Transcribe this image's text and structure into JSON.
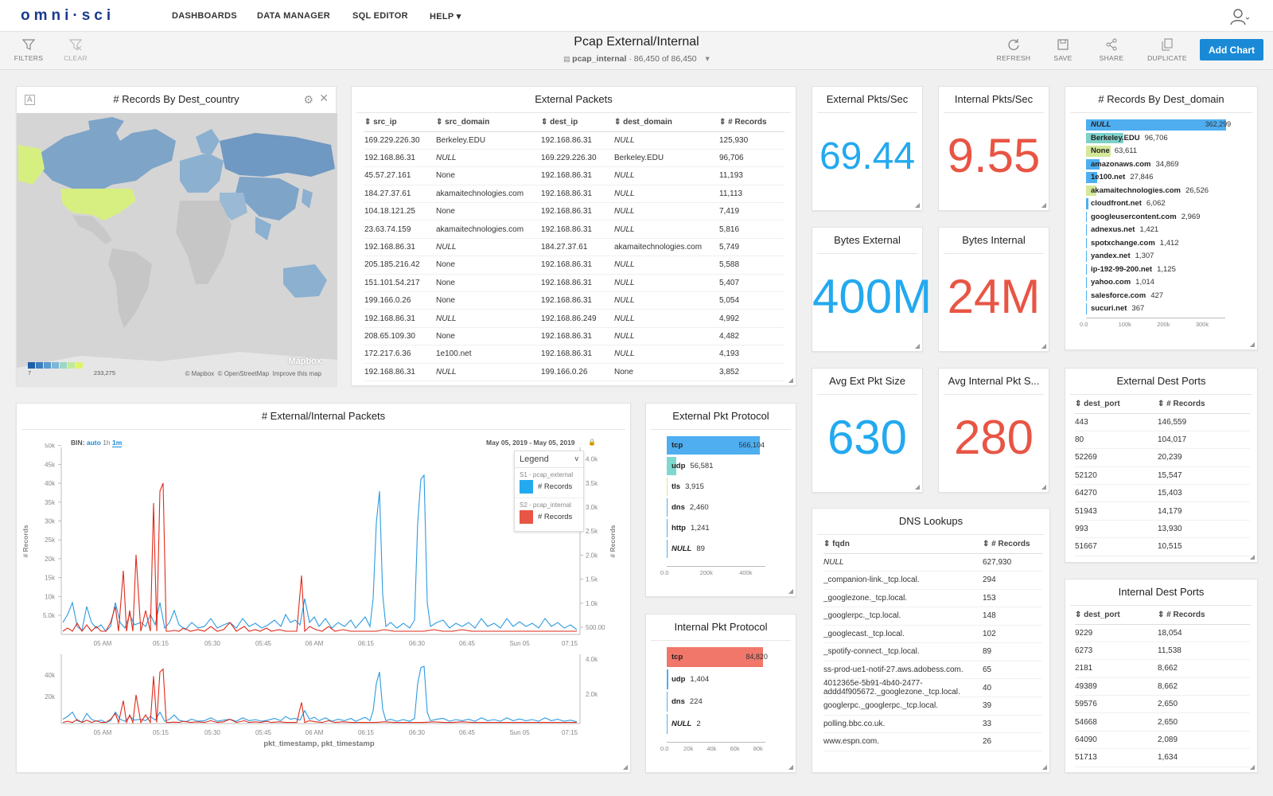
{
  "app": {
    "logo": "omni·sci",
    "nav": [
      "DASHBOARDS",
      "DATA MANAGER",
      "SQL EDITOR",
      "HELP ▾"
    ],
    "user_icon": "user-icon"
  },
  "toolbar": {
    "filters": "FILTERS",
    "clear": "CLEAR",
    "refresh": "REFRESH",
    "save": "SAVE",
    "share": "SHARE",
    "duplicate": "DUPLICATE",
    "add_chart": "Add Chart",
    "title": "Pcap External/Internal",
    "table": "pcap_internal",
    "count": "86,450 of 86,450"
  },
  "map": {
    "title": "# Records By Dest_country",
    "legend_min": "7",
    "legend_max": "233,275",
    "mapbox": "Mapbox",
    "attribution1": "© Mapbox",
    "attribution2": "© OpenStreetMap",
    "attribution3": "Improve this map",
    "colors": [
      "#1d5fa8",
      "#3a7fc0",
      "#5b9bd0",
      "#7bb7d8",
      "#9ed6c8",
      "#c2e89a",
      "#e0f26e"
    ]
  },
  "ext_packets": {
    "title": "External Packets",
    "headers": [
      "src_ip",
      "src_domain",
      "dest_ip",
      "dest_domain",
      "# Records"
    ],
    "rows": [
      [
        "169.229.226.30",
        "Berkeley.EDU",
        "192.168.86.31",
        "NULL",
        "125,930"
      ],
      [
        "192.168.86.31",
        "NULL",
        "169.229.226.30",
        "Berkeley.EDU",
        "96,706"
      ],
      [
        "45.57.27.161",
        "None",
        "192.168.86.31",
        "NULL",
        "11,193"
      ],
      [
        "184.27.37.61",
        "akamaitechnologies.com",
        "192.168.86.31",
        "NULL",
        "11,113"
      ],
      [
        "104.18.121.25",
        "None",
        "192.168.86.31",
        "NULL",
        "7,419"
      ],
      [
        "23.63.74.159",
        "akamaitechnologies.com",
        "192.168.86.31",
        "NULL",
        "5,816"
      ],
      [
        "192.168.86.31",
        "NULL",
        "184.27.37.61",
        "akamaitechnologies.com",
        "5,749"
      ],
      [
        "205.185.216.42",
        "None",
        "192.168.86.31",
        "NULL",
        "5,588"
      ],
      [
        "151.101.54.217",
        "None",
        "192.168.86.31",
        "NULL",
        "5,407"
      ],
      [
        "199.166.0.26",
        "None",
        "192.168.86.31",
        "NULL",
        "5,054"
      ],
      [
        "192.168.86.31",
        "NULL",
        "192.168.86.249",
        "NULL",
        "4,992"
      ],
      [
        "208.65.109.30",
        "None",
        "192.168.86.31",
        "NULL",
        "4,482"
      ],
      [
        "172.217.6.36",
        "1e100.net",
        "192.168.86.31",
        "NULL",
        "4,193"
      ],
      [
        "192.168.86.31",
        "NULL",
        "199.166.0.26",
        "None",
        "3,852"
      ]
    ]
  },
  "kpis": [
    {
      "title": "External Pkts/Sec",
      "value": "69.44",
      "color": "#23a9ef"
    },
    {
      "title": "Internal Pkts/Sec",
      "value": "9.55",
      "color": "#e85544"
    },
    {
      "title": "Bytes External",
      "value": "400M",
      "color": "#23a9ef"
    },
    {
      "title": "Bytes Internal",
      "value": "24M",
      "color": "#e85544"
    },
    {
      "title": "Avg Ext Pkt Size",
      "value": "630",
      "color": "#23a9ef"
    },
    {
      "title": "Avg Internal Pkt S...",
      "value": "280",
      "color": "#e85544"
    }
  ],
  "dest_domain": {
    "title": "# Records By Dest_domain",
    "ticks": [
      "0.0",
      "100k",
      "200k",
      "300k"
    ],
    "max": 360000,
    "items": [
      {
        "label": "NULL",
        "value": 362299,
        "display": "362,299",
        "color": "#4eaef0"
      },
      {
        "label": "Berkeley.EDU",
        "value": 96706,
        "display": "96,706",
        "color": "#7fd0c8"
      },
      {
        "label": "None",
        "value": 63611,
        "display": "63,611",
        "color": "#d4e89a"
      },
      {
        "label": "amazonaws.com",
        "value": 34869,
        "display": "34,869",
        "color": "#4eaef0"
      },
      {
        "label": "1e100.net",
        "value": 27846,
        "display": "27,846",
        "color": "#4eaef0"
      },
      {
        "label": "akamaitechnologies.com",
        "value": 26526,
        "display": "26,526",
        "color": "#d4e89a"
      },
      {
        "label": "cloudfront.net",
        "value": 6062,
        "display": "6,062",
        "color": "#4eaef0"
      },
      {
        "label": "googleusercontent.com",
        "value": 2969,
        "display": "2,969",
        "color": "#4eaef0"
      },
      {
        "label": "adnexus.net",
        "value": 1421,
        "display": "1,421",
        "color": "#4eaef0"
      },
      {
        "label": "spotxchange.com",
        "value": 1412,
        "display": "1,412",
        "color": "#4eaef0"
      },
      {
        "label": "yandex.net",
        "value": 1307,
        "display": "1,307",
        "color": "#4eaef0"
      },
      {
        "label": "ip-192-99-200.net",
        "value": 1125,
        "display": "1,125",
        "color": "#4eaef0"
      },
      {
        "label": "yahoo.com",
        "value": 1014,
        "display": "1,014",
        "color": "#4eaef0"
      },
      {
        "label": "salesforce.com",
        "value": 427,
        "display": "427",
        "color": "#4eaef0"
      },
      {
        "label": "sucuri.net",
        "value": 367,
        "display": "367",
        "color": "#4eaef0"
      }
    ]
  },
  "ext_ports": {
    "title": "External Dest Ports",
    "headers": [
      "dest_port",
      "# Records"
    ],
    "rows": [
      [
        "443",
        "146,559"
      ],
      [
        "80",
        "104,017"
      ],
      [
        "52269",
        "20,239"
      ],
      [
        "52120",
        "15,547"
      ],
      [
        "64270",
        "15,403"
      ],
      [
        "51943",
        "14,179"
      ],
      [
        "993",
        "13,930"
      ],
      [
        "51667",
        "10,515"
      ]
    ]
  },
  "int_ports": {
    "title": "Internal Dest Ports",
    "headers": [
      "dest_port",
      "# Records"
    ],
    "rows": [
      [
        "9229",
        "18,054"
      ],
      [
        "6273",
        "11,538"
      ],
      [
        "2181",
        "8,662"
      ],
      [
        "49389",
        "8,662"
      ],
      [
        "59576",
        "2,650"
      ],
      [
        "54668",
        "2,650"
      ],
      [
        "64090",
        "2,089"
      ],
      [
        "51713",
        "1,634"
      ]
    ]
  },
  "dns": {
    "title": "DNS Lookups",
    "headers": [
      "fqdn",
      "# Records"
    ],
    "rows": [
      [
        "NULL",
        "627,930"
      ],
      [
        "_companion-link._tcp.local.",
        "294"
      ],
      [
        "_googlezone._tcp.local.",
        "153"
      ],
      [
        "_googlerpc._tcp.local.",
        "148"
      ],
      [
        "_googlecast._tcp.local.",
        "102"
      ],
      [
        "_spotify-connect._tcp.local.",
        "89"
      ],
      [
        "ss-prod-ue1-notif-27.aws.adobess.com.",
        "65"
      ],
      [
        "4012365e-5b91-4b40-2477-addd4f905672._googlezone._tcp.local.",
        "40"
      ],
      [
        "googlerpc._googlerpc._tcp.local.",
        "39"
      ],
      [
        "polling.bbc.co.uk.",
        "33"
      ],
      [
        "www.espn.com.",
        "26"
      ]
    ]
  },
  "ext_proto": {
    "title": "External Pkt Protocol",
    "ticks": [
      "0.0",
      "200k",
      "400k"
    ],
    "max": 600000,
    "items": [
      {
        "label": "tcp",
        "value": 566104,
        "display": "566,104",
        "color": "#4eaef0"
      },
      {
        "label": "udp",
        "value": 56581,
        "display": "56,581",
        "color": "#7fd8d0"
      },
      {
        "label": "tls",
        "value": 3915,
        "display": "3,915",
        "color": "#d4e89a"
      },
      {
        "label": "dns",
        "value": 2460,
        "display": "2,460",
        "color": "#4eaef0"
      },
      {
        "label": "http",
        "value": 1241,
        "display": "1,241",
        "color": "#4eaef0"
      },
      {
        "label": "NULL",
        "value": 89,
        "display": "89",
        "color": "#4eaef0"
      }
    ]
  },
  "int_proto": {
    "title": "Internal Pkt Protocol",
    "ticks": [
      "0.0",
      "20k",
      "40k",
      "60k",
      "80k"
    ],
    "max": 87000,
    "items": [
      {
        "label": "tcp",
        "value": 84820,
        "display": "84,820",
        "color": "#f0776a"
      },
      {
        "label": "udp",
        "value": 1404,
        "display": "1,404",
        "color": "#4eaef0"
      },
      {
        "label": "dns",
        "value": 224,
        "display": "224",
        "color": "#4eaef0"
      },
      {
        "label": "NULL",
        "value": 2,
        "display": "2",
        "color": "#4eaef0"
      }
    ]
  },
  "line": {
    "title": "# External/Internal Packets",
    "bin_label": "BIN:",
    "bins": [
      "auto",
      "1h",
      "1m"
    ],
    "date_range": "May 05, 2019 - May 05, 2019",
    "legend_title": "Legend",
    "s1": "S1 - pcap_external",
    "s2": "S2 - pcap_internal",
    "s1_label": "# Records",
    "s2_label": "# Records",
    "ylabel": "# Records",
    "xlabel": "pkt_timestamp, pkt_timestamp",
    "xticks": [
      "05 AM",
      "05:15",
      "05:30",
      "05:45",
      "06 AM",
      "06:15",
      "06:30",
      "06:45",
      "Sun 05",
      "07:15"
    ],
    "yticks_left": [
      "5.0k",
      "10k",
      "15k",
      "20k",
      "25k",
      "30k",
      "35k",
      "40k",
      "45k",
      "50k"
    ],
    "yticks_right": [
      "500.00",
      "1.0k",
      "1.5k",
      "2.0k",
      "2.5k",
      "3.0k",
      "3.5k",
      "4.0k"
    ],
    "mini_yticks_left": [
      "20k",
      "40k"
    ],
    "mini_yticks_right": [
      "2.0k",
      "4.0k"
    ],
    "ext_color": "#2c9be0",
    "int_color": "#e02a1a"
  }
}
